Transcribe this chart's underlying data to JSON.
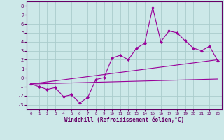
{
  "xlabel": "Windchill (Refroidissement éolien,°C)",
  "bg_color": "#cce8e8",
  "grid_color": "#aacccc",
  "line_color": "#990099",
  "xlim": [
    -0.5,
    23.5
  ],
  "ylim": [
    -3.5,
    8.5
  ],
  "xticks": [
    0,
    1,
    2,
    3,
    4,
    5,
    6,
    7,
    8,
    9,
    10,
    11,
    12,
    13,
    14,
    15,
    16,
    17,
    18,
    19,
    20,
    21,
    22,
    23
  ],
  "yticks": [
    -3,
    -2,
    -1,
    0,
    1,
    2,
    3,
    4,
    5,
    6,
    7,
    8
  ],
  "line1_x": [
    0,
    1,
    2,
    3,
    4,
    5,
    6,
    7,
    8,
    9,
    10,
    11,
    12,
    13,
    14,
    15,
    16,
    17,
    18,
    19,
    20,
    21,
    22,
    23
  ],
  "line1_y": [
    -0.7,
    -1.0,
    -1.3,
    -1.1,
    -2.1,
    -1.9,
    -2.8,
    -2.2,
    -0.2,
    0.0,
    2.2,
    2.5,
    2.0,
    3.3,
    3.8,
    7.8,
    4.0,
    5.2,
    5.0,
    4.1,
    3.3,
    3.0,
    3.5,
    1.9
  ],
  "line2_x": [
    0,
    23
  ],
  "line2_y": [
    -0.7,
    -0.15
  ],
  "line3_x": [
    0,
    23
  ],
  "line3_y": [
    -0.7,
    2.0
  ]
}
